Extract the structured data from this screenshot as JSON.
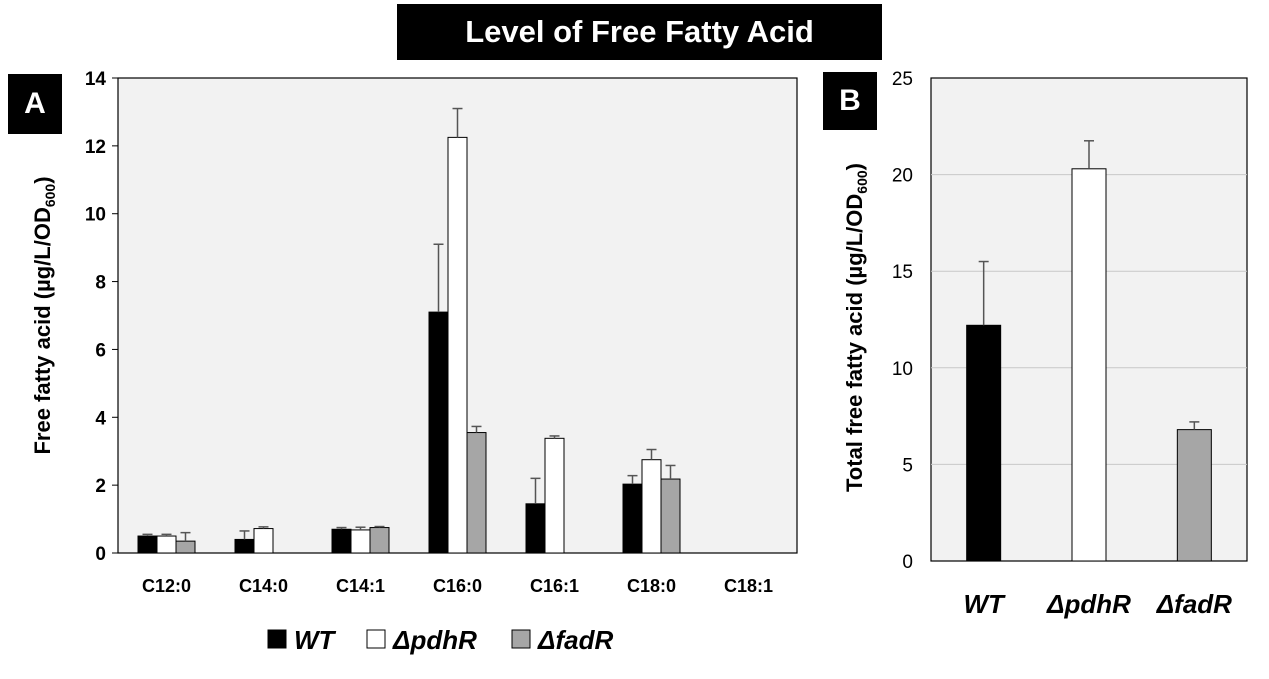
{
  "page_title": "Level of Free Fatty Acid",
  "panels": {
    "a_label": "A",
    "b_label": "B"
  },
  "chart_data": [
    {
      "panel": "A",
      "type": "bar",
      "categories": [
        "C12:0",
        "C14:0",
        "C14:1",
        "C16:0",
        "C16:1",
        "C18:0",
        "C18:1"
      ],
      "ylabel": "Free fatty acid (µg/L/OD600)",
      "ylabel_parts": [
        "Free fatty acid (µg/L/OD",
        "600",
        ")"
      ],
      "ylim": [
        0,
        14
      ],
      "yticks": [
        "0",
        "2",
        "4",
        "6",
        "8",
        "10",
        "12",
        "14"
      ],
      "grid": false,
      "legend_position": "bottom",
      "series": [
        {
          "name": "WT",
          "color": "#000000",
          "values": [
            0.5,
            0.4,
            0.7,
            7.1,
            1.45,
            2.03,
            0
          ],
          "errors": [
            0.05,
            0.25,
            0.05,
            2.0,
            0.75,
            0.25,
            0
          ]
        },
        {
          "name": "ΔpdhR",
          "color": "#ffffff",
          "values": [
            0.5,
            0.72,
            0.68,
            12.25,
            3.38,
            2.75,
            0
          ],
          "errors": [
            0.05,
            0.05,
            0.08,
            0.85,
            0.07,
            0.3,
            0
          ]
        },
        {
          "name": "ΔfadR",
          "color": "#a6a6a6",
          "values": [
            0.35,
            0,
            0.75,
            3.55,
            0,
            2.18,
            0
          ],
          "errors": [
            0.25,
            0,
            0.03,
            0.18,
            0,
            0.4,
            0
          ]
        }
      ]
    },
    {
      "panel": "B",
      "type": "bar",
      "categories": [
        "WT",
        "ΔpdhR",
        "ΔfadR"
      ],
      "ylabel": "Total free fatty acid (µg/L/OD600)",
      "ylabel_parts": [
        "Total free fatty acid (µg/L/OD",
        "600",
        ")"
      ],
      "ylim": [
        0,
        25
      ],
      "yticks": [
        "0",
        "5",
        "10",
        "15",
        "20",
        "25"
      ],
      "grid": true,
      "values": [
        12.2,
        20.3,
        6.8
      ],
      "errors": [
        3.3,
        1.45,
        0.4
      ],
      "colors": [
        "#000000",
        "#ffffff",
        "#a6a6a6"
      ]
    }
  ]
}
